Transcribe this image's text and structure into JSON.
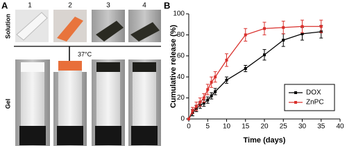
{
  "panel_a": {
    "label": "A",
    "columns": [
      "1",
      "2",
      "3",
      "4"
    ],
    "rows": [
      "Solution",
      "Gel"
    ],
    "arrow_label": "37°C"
  },
  "chart_data": {
    "type": "line",
    "panel_label": "B",
    "xlabel": "Time (days)",
    "ylabel": "Cumulative release (%)",
    "x": [
      0,
      1,
      2,
      3,
      4,
      5,
      6,
      7,
      10,
      15,
      20,
      25,
      30,
      35
    ],
    "series": [
      {
        "name": "DOX",
        "color": "#000000",
        "values": [
          0,
          6,
          10,
          13,
          15,
          18,
          22,
          26,
          37,
          48,
          61,
          75,
          81,
          83
        ],
        "errors": [
          0,
          3,
          3,
          3,
          3,
          3,
          3,
          3,
          3,
          3,
          5,
          6,
          6,
          6
        ]
      },
      {
        "name": "ZnPC",
        "color": "#d9302c",
        "values": [
          0,
          8,
          12,
          16,
          20,
          28,
          35,
          40,
          56,
          80,
          86,
          87,
          88,
          88
        ],
        "errors": [
          0,
          3,
          4,
          4,
          4,
          5,
          5,
          5,
          6,
          6,
          6,
          6,
          6,
          6
        ]
      }
    ],
    "xlim": [
      0,
      40
    ],
    "xticks": [
      0,
      5,
      10,
      15,
      20,
      25,
      30,
      35,
      40
    ],
    "ylim": [
      0,
      100
    ],
    "yticks": [
      0,
      20,
      40,
      60,
      80,
      100
    ],
    "legend": "lower right",
    "grid": false
  }
}
